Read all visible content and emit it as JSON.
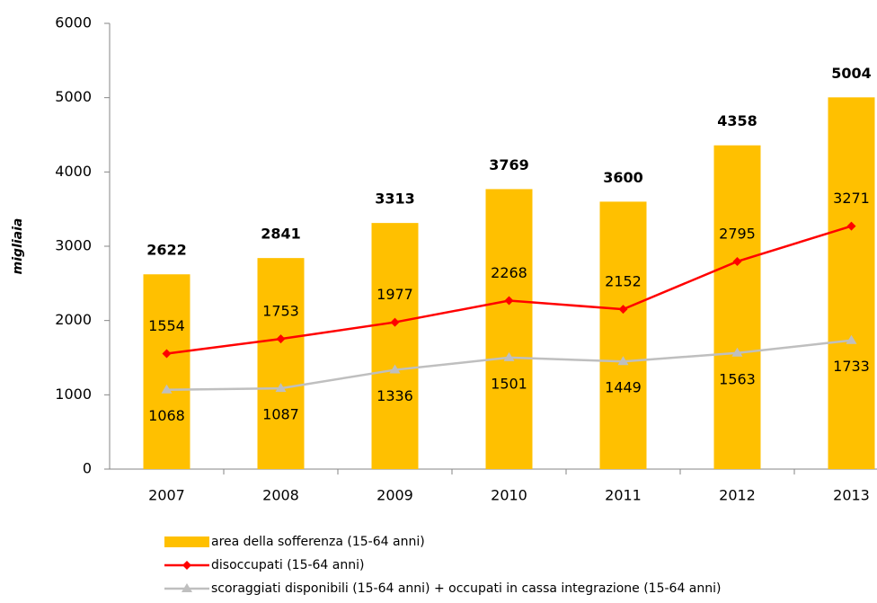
{
  "chart_data": {
    "type": "combo",
    "ylabel": "migliaia",
    "categories": [
      "2007",
      "2008",
      "2009",
      "2010",
      "2011",
      "2012",
      "2013"
    ],
    "ylim": [
      0,
      6000
    ],
    "yticks": [
      0,
      1000,
      2000,
      3000,
      4000,
      5000,
      6000
    ],
    "grid": false,
    "legend": "bottom",
    "series": [
      {
        "name": "area della sofferenza (15-64 anni)",
        "type": "bar",
        "color": "#FFC000",
        "values": [
          2622,
          2841,
          3313,
          3769,
          3600,
          4358,
          5004
        ]
      },
      {
        "name": "disoccupati (15-64 anni)",
        "type": "line",
        "marker": "diamond",
        "color": "#FF0000",
        "values": [
          1554,
          1753,
          1977,
          2268,
          2152,
          2795,
          3271
        ]
      },
      {
        "name": "scoraggiati disponibili (15-64 anni) + occupati in cassa integrazione (15-64 anni)",
        "type": "line",
        "marker": "triangle",
        "color": "#BFBFBF",
        "values": [
          1068,
          1087,
          1336,
          1501,
          1449,
          1563,
          1733
        ]
      }
    ]
  }
}
